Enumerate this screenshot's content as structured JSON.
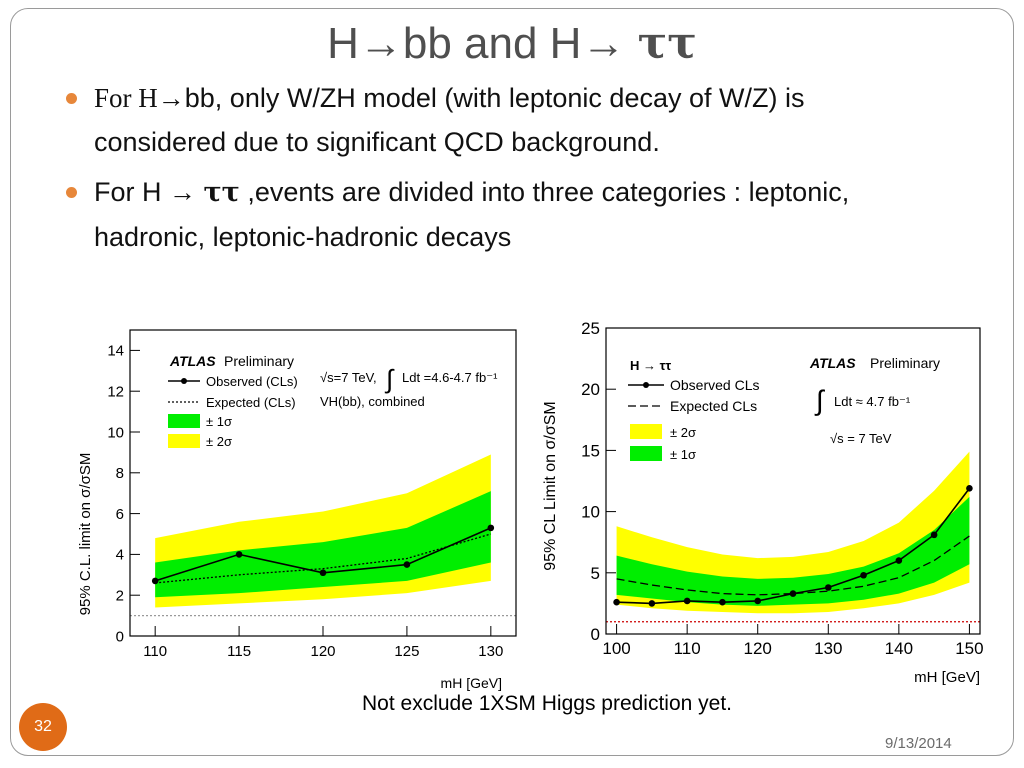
{
  "slide": {
    "title_prefix": "H→bb and H→ ",
    "title_tau": "ττ",
    "bullet1_a": "For H",
    "bullet1_b": "→bb, only W/ZH model (with leptonic decay of W/Z) is considered due to significant QCD background.",
    "bullet2_a": "For H → ",
    "bullet2_tau": "ττ",
    "bullet2_b": " ,events are divided into  three categories : leptonic, hadronic, leptonic-hadronic decays",
    "caption": "Not exclude 1XSM Higgs prediction yet.",
    "slide_number": "32",
    "date": "9/13/2014"
  },
  "colors": {
    "yellow": "#ffff00",
    "green": "#00ee00",
    "bullet": "#e7873a",
    "badge": "#e06b17"
  },
  "chart_data": [
    {
      "type": "line",
      "ylabel": "95% C.L. limit on σ/σSM",
      "xlabel": "mH [GeV]",
      "xlim": [
        108.5,
        131.5
      ],
      "ylim": [
        0,
        15
      ],
      "xticks": [
        110,
        115,
        120,
        125,
        130
      ],
      "yticks": [
        0,
        2,
        4,
        6,
        8,
        10,
        12,
        14
      ],
      "legend": {
        "experiment": "ATLAS",
        "status": "Preliminary",
        "observed": "Observed (CLs)",
        "expected": "Expected (CLs)",
        "band1": "± 1σ",
        "band2": "± 2σ",
        "energy": "√s=7 TeV,",
        "lumi": "Ldt =4.6-4.7 fb⁻¹",
        "channel": "VH(bb), combined"
      },
      "x": [
        110,
        115,
        120,
        125,
        130
      ],
      "observed": [
        2.7,
        4.0,
        3.1,
        3.5,
        5.3
      ],
      "expected": [
        2.6,
        3.0,
        3.3,
        3.8,
        5.0
      ],
      "band1_low": [
        1.9,
        2.1,
        2.4,
        2.7,
        3.6
      ],
      "band1_high": [
        3.6,
        4.2,
        4.6,
        5.3,
        7.1
      ],
      "band2_low": [
        1.4,
        1.6,
        1.8,
        2.1,
        2.7
      ],
      "band2_high": [
        4.8,
        5.6,
        6.1,
        7.0,
        8.9
      ],
      "reference_line": 1
    },
    {
      "type": "line",
      "ylabel": "95% CL Limit on σ/σSM",
      "xlabel": "mH [GeV]",
      "xlim": [
        98.5,
        151.5
      ],
      "ylim": [
        0,
        25
      ],
      "xticks": [
        100,
        110,
        120,
        130,
        140,
        150
      ],
      "yticks": [
        0,
        5,
        10,
        15,
        20,
        25
      ],
      "legend": {
        "process": "H → ττ",
        "experiment": "ATLAS",
        "status": "Preliminary",
        "observed": "Observed CLs",
        "expected": "Expected CLs",
        "band2": "± 2σ",
        "band1": "± 1σ",
        "lumi": "Ldt ≈ 4.7 fb⁻¹",
        "energy": "√s = 7 TeV"
      },
      "x": [
        100,
        105,
        110,
        115,
        120,
        125,
        130,
        135,
        140,
        145,
        150
      ],
      "observed": [
        2.6,
        2.5,
        2.7,
        2.6,
        2.7,
        3.3,
        3.8,
        4.8,
        6.0,
        8.1,
        11.9
      ],
      "expected": [
        4.5,
        4.0,
        3.6,
        3.3,
        3.2,
        3.3,
        3.5,
        3.9,
        4.6,
        6.0,
        8.0
      ],
      "band1_low": [
        3.2,
        2.9,
        2.6,
        2.4,
        2.3,
        2.4,
        2.5,
        2.8,
        3.3,
        4.2,
        5.7
      ],
      "band1_high": [
        6.4,
        5.7,
        5.1,
        4.7,
        4.5,
        4.6,
        4.9,
        5.5,
        6.6,
        8.5,
        11.2
      ],
      "band2_low": [
        2.4,
        2.1,
        1.9,
        1.8,
        1.7,
        1.7,
        1.8,
        2.1,
        2.5,
        3.2,
        4.2
      ],
      "band2_high": [
        8.8,
        7.9,
        7.1,
        6.5,
        6.2,
        6.3,
        6.7,
        7.6,
        9.1,
        11.7,
        14.9
      ],
      "reference_line": 1
    }
  ]
}
